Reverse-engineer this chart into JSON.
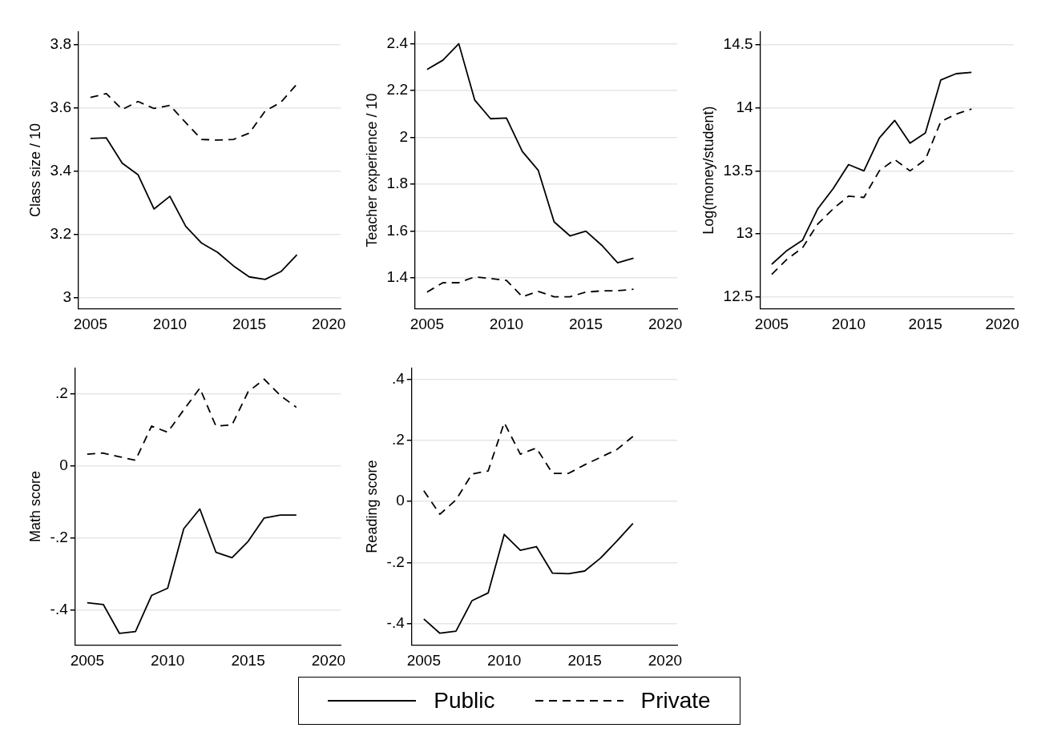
{
  "chart_data": [
    {
      "type": "line",
      "ylabel": "Class size / 10",
      "x": [
        2005,
        2006,
        2007,
        2008,
        2009,
        2010,
        2011,
        2012,
        2013,
        2014,
        2015,
        2016,
        2017,
        2018
      ],
      "xlim": [
        2004.25,
        2020.75
      ],
      "xticks": [
        2005,
        2010,
        2015,
        2020
      ],
      "ylim": [
        2.965,
        3.84
      ],
      "yticks": [
        3,
        3.2,
        3.4,
        3.6,
        3.8
      ],
      "grid": "y",
      "legend": "bottom",
      "marker": "none",
      "series": [
        {
          "name": "Public",
          "color": "#000000",
          "line_style": "solid",
          "values": [
            3.503,
            3.505,
            3.425,
            3.388,
            3.28,
            3.32,
            3.225,
            3.172,
            3.143,
            3.1,
            3.065,
            3.057,
            3.082,
            3.135
          ]
        },
        {
          "name": "Private",
          "color": "#000000",
          "line_style": "dashed",
          "values": [
            3.633,
            3.645,
            3.595,
            3.62,
            3.598,
            3.608,
            3.553,
            3.5,
            3.498,
            3.5,
            3.52,
            3.59,
            3.618,
            3.675
          ]
        }
      ]
    },
    {
      "type": "line",
      "ylabel": "Teacher experience / 10",
      "x": [
        2005,
        2006,
        2007,
        2008,
        2009,
        2010,
        2011,
        2012,
        2013,
        2014,
        2015,
        2016,
        2017,
        2018
      ],
      "xlim": [
        2004.25,
        2020.75
      ],
      "xticks": [
        2005,
        2010,
        2015,
        2020
      ],
      "ylim": [
        1.27,
        2.45
      ],
      "yticks": [
        1.4,
        1.6,
        1.8,
        2,
        2.2,
        2.4
      ],
      "grid": "y",
      "marker": "none",
      "series": [
        {
          "color": "#000000",
          "line_style": "solid",
          "values": [
            2.29,
            2.33,
            2.4,
            2.16,
            2.08,
            2.083,
            1.94,
            1.86,
            1.64,
            1.58,
            1.6,
            1.54,
            1.465,
            1.485
          ]
        },
        {
          "color": "#000000",
          "line_style": "dashed",
          "values": [
            1.34,
            1.38,
            1.38,
            1.405,
            1.398,
            1.39,
            1.32,
            1.343,
            1.32,
            1.32,
            1.34,
            1.345,
            1.346,
            1.352
          ]
        }
      ]
    },
    {
      "type": "line",
      "ylabel": "Log(money/student)",
      "x": [
        2005,
        2006,
        2007,
        2008,
        2009,
        2010,
        2011,
        2012,
        2013,
        2014,
        2015,
        2016,
        2017,
        2018
      ],
      "xlim": [
        2004.25,
        2020.75
      ],
      "xticks": [
        2005,
        2010,
        2015,
        2020
      ],
      "ylim": [
        12.41,
        14.6
      ],
      "yticks": [
        12.5,
        13,
        13.5,
        14,
        14.5
      ],
      "grid": "y",
      "marker": "none",
      "series": [
        {
          "color": "#000000",
          "line_style": "solid",
          "values": [
            12.76,
            12.87,
            12.95,
            13.2,
            13.36,
            13.55,
            13.5,
            13.76,
            13.9,
            13.72,
            13.8,
            14.22,
            14.27,
            14.28
          ]
        },
        {
          "color": "#000000",
          "line_style": "dashed",
          "values": [
            12.68,
            12.8,
            12.89,
            13.08,
            13.2,
            13.3,
            13.29,
            13.5,
            13.59,
            13.5,
            13.59,
            13.89,
            13.95,
            13.99
          ]
        }
      ]
    },
    {
      "type": "line",
      "ylabel": "Math score",
      "x": [
        2005,
        2006,
        2007,
        2008,
        2009,
        2010,
        2011,
        2012,
        2013,
        2014,
        2015,
        2016,
        2017,
        2018
      ],
      "xlim": [
        2004.25,
        2020.75
      ],
      "xticks": [
        2005,
        2010,
        2015,
        2020
      ],
      "ylim": [
        -0.497,
        0.27
      ],
      "yticks": [
        {
          "value": -0.4,
          "label": "-.4"
        },
        {
          "value": -0.2,
          "label": "-.2"
        },
        0,
        {
          "value": 0.2,
          "label": ".2"
        }
      ],
      "grid": "y",
      "marker": "none",
      "series": [
        {
          "color": "#000000",
          "line_style": "solid",
          "values": [
            -0.38,
            -0.385,
            -0.465,
            -0.46,
            -0.36,
            -0.34,
            -0.175,
            -0.12,
            -0.24,
            -0.255,
            -0.21,
            -0.145,
            -0.137,
            -0.137
          ]
        },
        {
          "color": "#000000",
          "line_style": "dashed",
          "values": [
            0.032,
            0.035,
            0.025,
            0.015,
            0.11,
            0.093,
            0.155,
            0.215,
            0.11,
            0.113,
            0.205,
            0.24,
            0.195,
            0.162
          ]
        }
      ]
    },
    {
      "type": "line",
      "ylabel": "Reading score",
      "x": [
        2005,
        2006,
        2007,
        2008,
        2009,
        2010,
        2011,
        2012,
        2013,
        2014,
        2015,
        2016,
        2017,
        2018
      ],
      "xlim": [
        2004.25,
        2020.75
      ],
      "xticks": [
        2005,
        2010,
        2015,
        2020
      ],
      "ylim": [
        -0.47,
        0.436
      ],
      "yticks": [
        {
          "value": -0.4,
          "label": "-.4"
        },
        {
          "value": -0.2,
          "label": "-.2"
        },
        0,
        {
          "value": 0.2,
          "label": ".2"
        },
        {
          "value": 0.4,
          "label": ".4"
        }
      ],
      "grid": "y",
      "marker": "none",
      "series": [
        {
          "color": "#000000",
          "line_style": "solid",
          "values": [
            -0.385,
            -0.432,
            -0.425,
            -0.325,
            -0.3,
            -0.108,
            -0.16,
            -0.148,
            -0.235,
            -0.237,
            -0.228,
            -0.185,
            -0.13,
            -0.072
          ]
        },
        {
          "color": "#000000",
          "line_style": "dashed",
          "values": [
            0.035,
            -0.042,
            0.005,
            0.09,
            0.1,
            0.258,
            0.155,
            0.175,
            0.092,
            0.092,
            0.12,
            0.145,
            0.17,
            0.213
          ]
        }
      ]
    }
  ]
}
